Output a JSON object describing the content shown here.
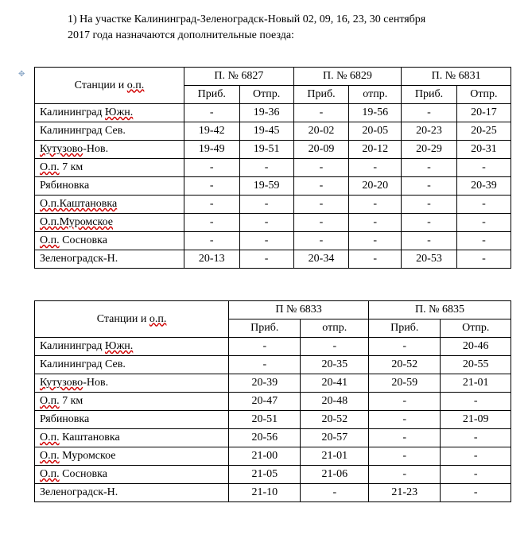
{
  "heading_part1": "1) На участке Калининград-Зеленоградск-Новый 02, 09, 16, 23, 30 сентября",
  "heading_part2": "2017 года назначаются дополнительные поезда:",
  "col_station": "Станции и ",
  "col_op": "о.п.",
  "col_arr": "Приб.",
  "col_dep": "Отпр.",
  "col_dep_lc": "отпр.",
  "t1": {
    "trains": [
      "П. № 6827",
      "П. № 6829",
      "П. № 6831"
    ],
    "rows": [
      {
        "s": "Калининград ",
        "sw": "Южн.",
        "a1": "-",
        "d1": "19-36",
        "a2": "-",
        "d2": "19-56",
        "a3": "-",
        "d3": "20-17"
      },
      {
        "s": "Калининград Сев.",
        "sw": "",
        "a1": "19-42",
        "d1": "19-45",
        "a2": "20-02",
        "d2": "20-05",
        "a3": "20-23",
        "d3": "20-25"
      },
      {
        "s": "",
        "sw": "Кутузово",
        "s2": "-Нов.",
        "a1": "19-49",
        "d1": "19-51",
        "a2": "20-09",
        "d2": "20-12",
        "a3": "20-29",
        "d3": "20-31"
      },
      {
        "s": "",
        "sw": "О.п.",
        "s2": " 7 км",
        "a1": "-",
        "d1": "-",
        "a2": "-",
        "d2": "-",
        "a3": "-",
        "d3": "-"
      },
      {
        "s": "Рябиновка",
        "sw": "",
        "a1": "-",
        "d1": "19-59",
        "a2": "-",
        "d2": "20-20",
        "a3": "-",
        "d3": "20-39"
      },
      {
        "s": "",
        "sw": "О.п.Каштановка",
        "a1": "-",
        "d1": "-",
        "a2": "-",
        "d2": "-",
        "a3": "-",
        "d3": "-"
      },
      {
        "s": "",
        "sw": "О.п.Муромское",
        "a1": "-",
        "d1": "-",
        "a2": "-",
        "d2": "-",
        "a3": "-",
        "d3": "-"
      },
      {
        "s": "",
        "sw": "О.п.",
        "s2": " Сосновка",
        "a1": "-",
        "d1": "-",
        "a2": "-",
        "d2": "-",
        "a3": "-",
        "d3": "-"
      },
      {
        "s": "Зеленоградск-Н.",
        "sw": "",
        "a1": "20-13",
        "d1": "-",
        "a2": "20-34",
        "d2": "-",
        "a3": "20-53",
        "d3": "-"
      }
    ]
  },
  "t2": {
    "trains": [
      "П № 6833",
      "П. № 6835"
    ],
    "rows": [
      {
        "s": "Калининград ",
        "sw": "Южн.",
        "a1": "-",
        "d1": "-",
        "a2": "-",
        "d2": "20-46"
      },
      {
        "s": "Калининград Сев.",
        "sw": "",
        "a1": "-",
        "d1": "20-35",
        "a2": "20-52",
        "d2": "20-55"
      },
      {
        "s": "",
        "sw": "Кутузово",
        "s2": "-Нов.",
        "a1": "20-39",
        "d1": "20-41",
        "a2": "20-59",
        "d2": "21-01"
      },
      {
        "s": "",
        "sw": "О.п.",
        "s2": " 7 км",
        "a1": "20-47",
        "d1": "20-48",
        "a2": "-",
        "d2": "-"
      },
      {
        "s": "Рябиновка",
        "sw": "",
        "a1": "20-51",
        "d1": "20-52",
        "a2": "-",
        "d2": "21-09"
      },
      {
        "s": "",
        "sw": "О.п.",
        "s2": " Каштановка",
        "a1": "20-56",
        "d1": "20-57",
        "a2": "-",
        "d2": "-"
      },
      {
        "s": "",
        "sw": "О.п.",
        "s2": " Муромское",
        "a1": "21-00",
        "d1": "21-01",
        "a2": "-",
        "d2": "-"
      },
      {
        "s": "",
        "sw": "О.п.",
        "s2": " Сосновка",
        "a1": "21-05",
        "d1": "21-06",
        "a2": "-",
        "d2": "-"
      },
      {
        "s": "Зеленоградск-Н.",
        "sw": "",
        "a1": "21-10",
        "d1": "-",
        "a2": "21-23",
        "d2": "-"
      }
    ]
  }
}
